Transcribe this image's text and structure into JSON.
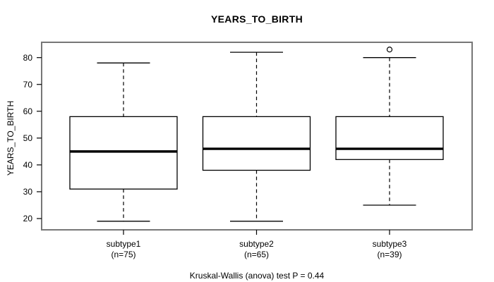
{
  "chart_data": {
    "type": "boxplot",
    "title": "YEARS_TO_BIRTH",
    "ylabel": "YEARS_TO_BIRTH",
    "xlabel": "",
    "yticks": [
      20,
      30,
      40,
      50,
      60,
      70,
      80
    ],
    "ylim": [
      17,
      85
    ],
    "grid": false,
    "legend": "none",
    "annotation": "Kruskal-Wallis (anova) test P = 0.44",
    "groups": [
      {
        "label": "subtype1",
        "sublabel": "(n=75)",
        "n": 75,
        "whisker_low": 19,
        "q1": 31,
        "median": 45,
        "q3": 58,
        "whisker_high": 78,
        "outliers": []
      },
      {
        "label": "subtype2",
        "sublabel": "(n=65)",
        "n": 65,
        "whisker_low": 19,
        "q1": 38,
        "median": 46,
        "q3": 58,
        "whisker_high": 82,
        "outliers": []
      },
      {
        "label": "subtype3",
        "sublabel": "(n=39)",
        "n": 39,
        "whisker_low": 25,
        "q1": 42,
        "median": 46,
        "q3": 58,
        "whisker_high": 80,
        "outliers": [
          83
        ]
      }
    ]
  },
  "colors": {
    "line": "#000000",
    "median": "#000000",
    "frame": "#777777",
    "box_fill": "#ffffff",
    "background": "#ffffff"
  }
}
